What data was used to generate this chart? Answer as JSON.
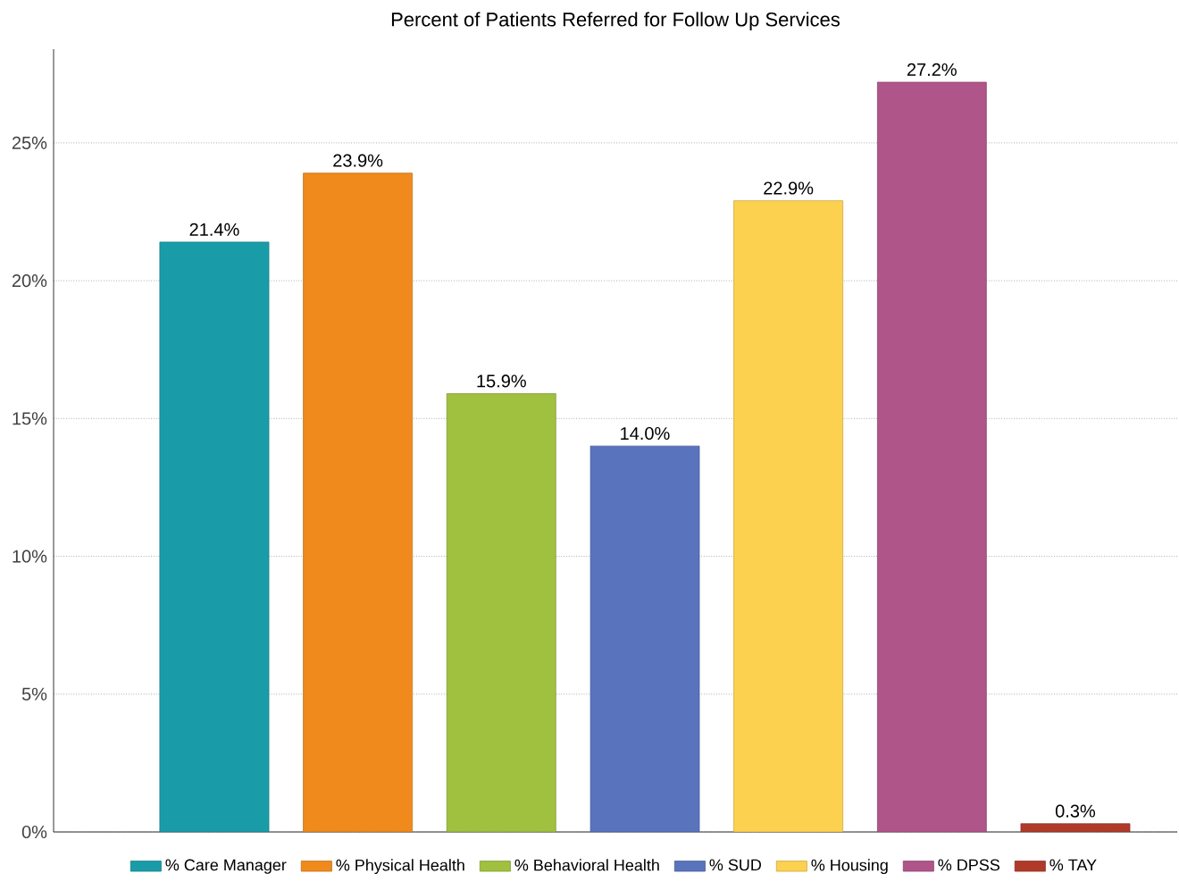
{
  "chart_data": {
    "type": "bar",
    "title": "Percent of Patients Referred for Follow Up Services",
    "categories": [
      null,
      null,
      null,
      null,
      null,
      null,
      null
    ],
    "series": [
      {
        "name": "% Care Manager",
        "color": "#1a9ca8",
        "values": [
          21.4,
          null,
          null,
          null,
          null,
          null,
          null
        ],
        "value_labels": [
          "21.4%",
          null,
          null,
          null,
          null,
          null,
          null
        ]
      },
      {
        "name": "% Physical Health",
        "color": "#f08a1c",
        "values": [
          null,
          23.9,
          null,
          null,
          null,
          null,
          null
        ],
        "value_labels": [
          null,
          "23.9%",
          null,
          null,
          null,
          null,
          null
        ]
      },
      {
        "name": "% Behavioral Health",
        "color": "#a0c040",
        "values": [
          null,
          null,
          15.9,
          null,
          null,
          null,
          null
        ],
        "value_labels": [
          null,
          null,
          "15.9%",
          null,
          null,
          null,
          null
        ]
      },
      {
        "name": "% SUD",
        "color": "#5a73bd",
        "values": [
          null,
          null,
          null,
          14.0,
          null,
          null,
          null
        ],
        "value_labels": [
          null,
          null,
          null,
          "14.0%",
          null,
          null,
          null
        ]
      },
      {
        "name": "% Housing",
        "color": "#fdd150",
        "values": [
          null,
          null,
          null,
          null,
          22.9,
          null,
          null
        ],
        "value_labels": [
          null,
          null,
          null,
          null,
          "22.9%",
          null,
          null
        ]
      },
      {
        "name": "% DPSS",
        "color": "#b0558a",
        "values": [
          null,
          null,
          null,
          null,
          null,
          27.2,
          null
        ],
        "value_labels": [
          null,
          null,
          null,
          null,
          null,
          "27.2%",
          null
        ]
      },
      {
        "name": "% TAY",
        "color": "#b03a2a",
        "values": [
          null,
          null,
          null,
          null,
          null,
          null,
          0.3
        ],
        "value_labels": [
          null,
          null,
          null,
          null,
          null,
          null,
          "0.3%"
        ]
      }
    ],
    "ylim": [
      0,
      28.4
    ],
    "yticks": [
      {
        "value": 0,
        "label": "0%"
      },
      {
        "value": 5,
        "label": "5%"
      },
      {
        "value": 10,
        "label": "10%"
      },
      {
        "value": 15,
        "label": "15%"
      },
      {
        "value": 20,
        "label": "20%"
      },
      {
        "value": 25,
        "label": "25%"
      }
    ],
    "grid": "y",
    "legend": "bottom"
  }
}
